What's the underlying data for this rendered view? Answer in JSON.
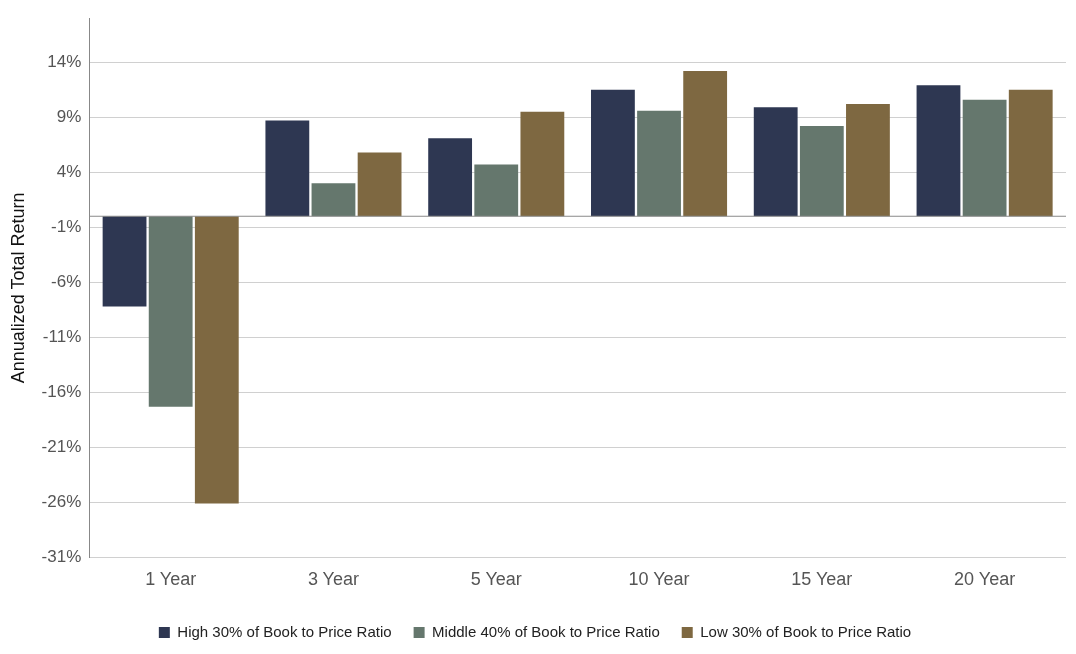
{
  "chart_data": {
    "type": "bar",
    "ylabel": "Annualized Total Return",
    "categories": [
      "1 Year",
      "3 Year",
      "5 Year",
      "10 Year",
      "15 Year",
      "20 Year"
    ],
    "series": [
      {
        "name": "High 30% of Book to Price Ratio",
        "color": "#2e3752",
        "values": [
          -8.2,
          8.7,
          7.1,
          11.5,
          9.9,
          11.9
        ]
      },
      {
        "name": "Middle 40% of Book to Price Ratio",
        "color": "#65776d",
        "values": [
          -17.3,
          3.0,
          4.7,
          9.6,
          8.2,
          10.6
        ]
      },
      {
        "name": "Low 30% of Book to Price Ratio",
        "color": "#7e6841",
        "values": [
          -26.1,
          5.8,
          9.5,
          13.2,
          10.2,
          11.5
        ]
      }
    ],
    "ylim": [
      -31,
      18
    ],
    "yticks": [
      {
        "value": -31,
        "label": "-31%"
      },
      {
        "value": -26,
        "label": "-26%"
      },
      {
        "value": -21,
        "label": "-21%"
      },
      {
        "value": -16,
        "label": "-16%"
      },
      {
        "value": -11,
        "label": "-11%"
      },
      {
        "value": -6,
        "label": "-6%"
      },
      {
        "value": -1,
        "label": "-1%"
      },
      {
        "value": 4,
        "label": "4%"
      },
      {
        "value": 9,
        "label": "9%"
      },
      {
        "value": 14,
        "label": "14%"
      }
    ],
    "grid": "y",
    "legend": "bottom"
  }
}
